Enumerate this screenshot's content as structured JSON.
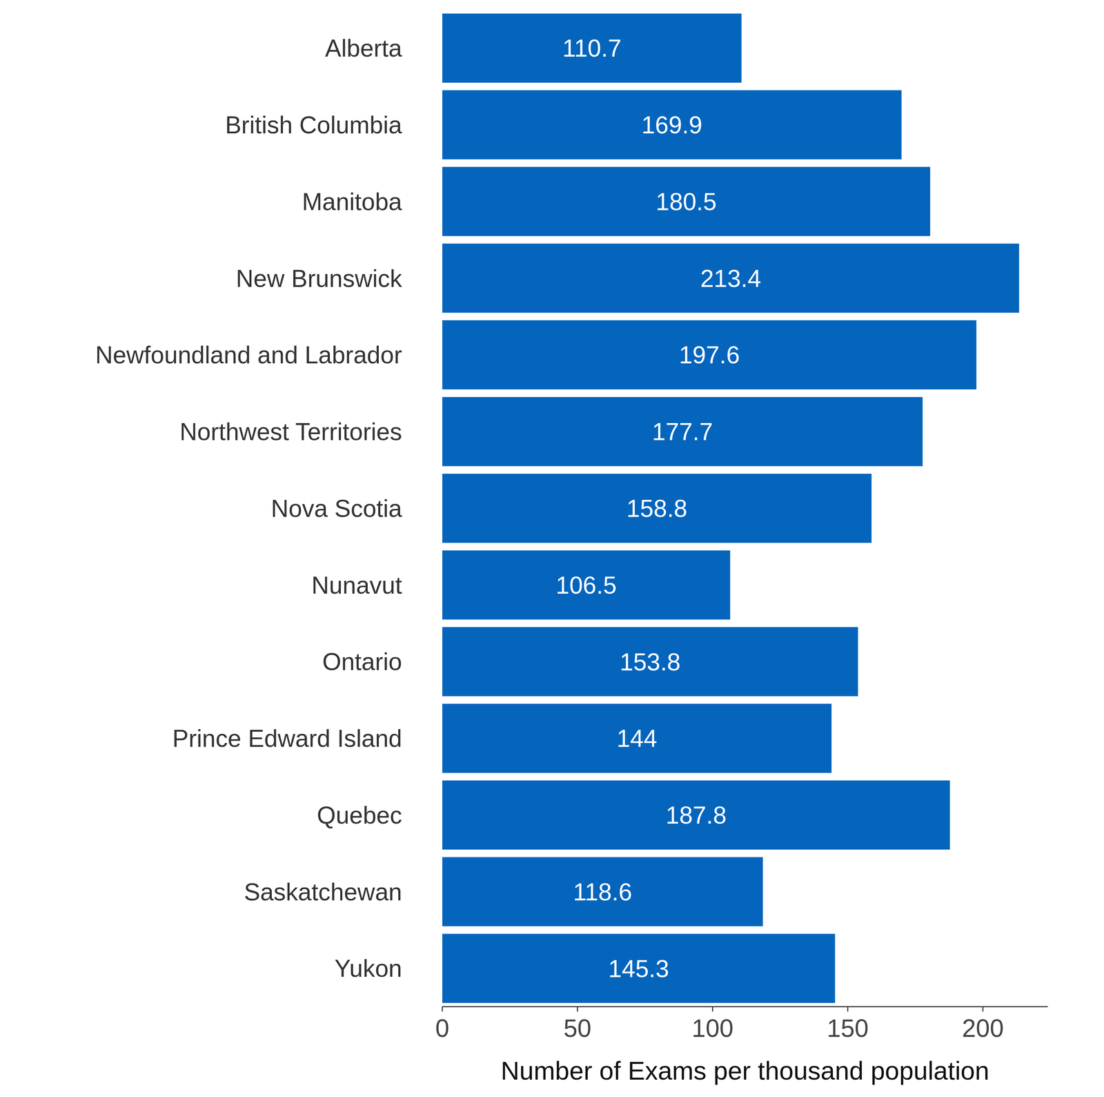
{
  "chart_data": {
    "type": "bar",
    "orientation": "horizontal",
    "x_label": "Number of Exams per thousand population",
    "categories": [
      "Alberta",
      "British Columbia",
      "Manitoba",
      "New Brunswick",
      "Newfoundland and Labrador",
      "Northwest Territories",
      "Nova Scotia",
      "Nunavut",
      "Ontario",
      "Prince Edward Island",
      "Quebec",
      "Saskatchewan",
      "Yukon"
    ],
    "values": [
      110.7,
      169.9,
      180.5,
      213.4,
      197.6,
      177.7,
      158.8,
      106.5,
      153.8,
      144,
      187.8,
      118.6,
      145.3
    ],
    "color": "#0565bd",
    "xlim": [
      0,
      224
    ],
    "xticks": [
      0,
      50,
      100,
      150,
      200
    ],
    "grid": false,
    "data_labels": true
  }
}
